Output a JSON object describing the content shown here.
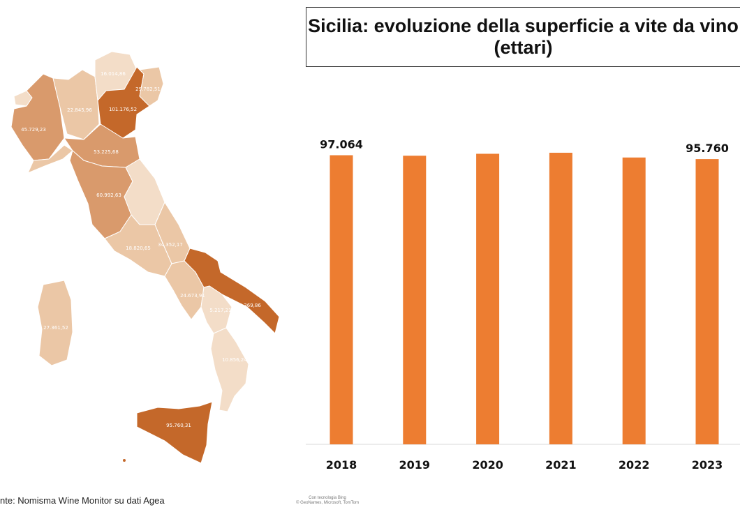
{
  "title_line1": "Sicilia: evoluzione della superficie a vite da vino",
  "title_line2": "(ettari)",
  "source": "nte: Nomisma Wine Monitor su dati Agea",
  "map_credit_line1": "Con tecnologia Bing",
  "map_credit_line2": "© GeoNames, Microsoft, TomTom",
  "map": {
    "colors": {
      "dark": "#c4682a",
      "mid": "#d99a6c",
      "light": "#ebc7a6",
      "pale": "#f3ddc8"
    },
    "regions": [
      {
        "name": "Valle d'Aosta",
        "value": ""
      },
      {
        "name": "Piemonte",
        "value": "45.729,23"
      },
      {
        "name": "Lombardia",
        "value": "22.845,96"
      },
      {
        "name": "Trentino-Alto Adige",
        "value": "16.014,86"
      },
      {
        "name": "Veneto",
        "value": "101.176,52"
      },
      {
        "name": "Friuli-Venezia Giulia",
        "value": "29.782,51"
      },
      {
        "name": "Emilia-Romagna",
        "value": "53.225,68"
      },
      {
        "name": "Toscana",
        "value": "60.992,63"
      },
      {
        "name": "Lazio",
        "value": "18.820,65"
      },
      {
        "name": "Abruzzo",
        "value": "34.352,17"
      },
      {
        "name": "Campania",
        "value": "24.673,91"
      },
      {
        "name": "Puglia",
        "value": "90.369,86"
      },
      {
        "name": "Basilicata",
        "value": "5.217,21"
      },
      {
        "name": "Calabria",
        "value": "10.856,24"
      },
      {
        "name": "Sardegna",
        "value": "27.361,52"
      },
      {
        "name": "Sicilia",
        "value": "95.760,31"
      }
    ]
  },
  "chart_data": {
    "type": "bar",
    "title": "Sicilia: evoluzione della superficie a vite da vino (ettari)",
    "categories": [
      "2018",
      "2019",
      "2020",
      "2021",
      "2022",
      "2023"
    ],
    "values": [
      97064,
      96900,
      97550,
      97900,
      96300,
      95760
    ],
    "data_labels": [
      "97.064",
      "",
      "",
      "",
      "",
      "95.760"
    ],
    "bar_color": "#ed7d31",
    "ylim": [
      0,
      100000
    ],
    "grid": false
  }
}
